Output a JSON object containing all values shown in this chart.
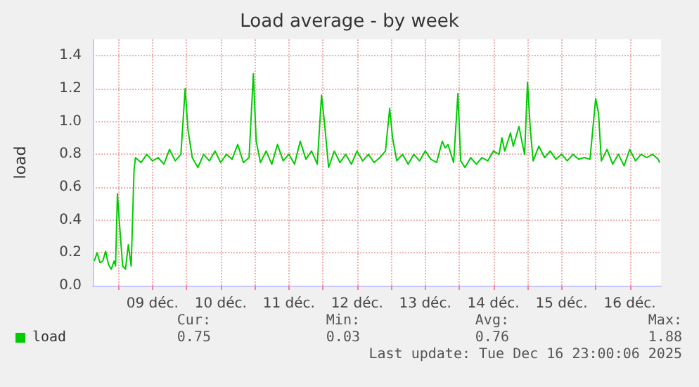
{
  "chart_data": {
    "type": "line",
    "title": "Load average - by week",
    "ylabel": "load",
    "x": [
      "2025-12-08T15:30",
      "2025-12-08T16:30",
      "2025-12-08T17:30",
      "2025-12-08T18:30",
      "2025-12-08T19:30",
      "2025-12-08T20:30",
      "2025-12-08T21:30",
      "2025-12-08T22:30",
      "2025-12-08T23:00",
      "2025-12-08T23:40",
      "2025-12-09T00:30",
      "2025-12-09T01:30",
      "2025-12-09T02:30",
      "2025-12-09T03:30",
      "2025-12-09T04:30",
      "2025-12-09T05:30",
      "2025-12-09T06:00",
      "2025-12-09T08:00",
      "2025-12-09T10:00",
      "2025-12-09T12:00",
      "2025-12-09T14:00",
      "2025-12-09T16:00",
      "2025-12-09T18:00",
      "2025-12-09T20:00",
      "2025-12-09T22:00",
      "2025-12-09T23:30",
      "2025-12-10T00:30",
      "2025-12-10T02:00",
      "2025-12-10T04:00",
      "2025-12-10T06:00",
      "2025-12-10T08:00",
      "2025-12-10T10:00",
      "2025-12-10T12:00",
      "2025-12-10T14:00",
      "2025-12-10T16:00",
      "2025-12-10T18:00",
      "2025-12-10T20:00",
      "2025-12-10T22:00",
      "2025-12-10T23:30",
      "2025-12-11T00:30",
      "2025-12-11T02:00",
      "2025-12-11T04:00",
      "2025-12-11T06:00",
      "2025-12-11T08:00",
      "2025-12-11T10:00",
      "2025-12-11T12:00",
      "2025-12-11T14:00",
      "2025-12-11T16:00",
      "2025-12-11T18:00",
      "2025-12-11T20:00",
      "2025-12-11T22:00",
      "2025-12-11T23:30",
      "2025-12-12T00:30",
      "2025-12-12T02:00",
      "2025-12-12T04:00",
      "2025-12-12T06:00",
      "2025-12-12T08:00",
      "2025-12-12T10:00",
      "2025-12-12T12:00",
      "2025-12-12T14:00",
      "2025-12-12T16:00",
      "2025-12-12T18:00",
      "2025-12-12T20:00",
      "2025-12-12T22:00",
      "2025-12-12T23:30",
      "2025-12-13T00:30",
      "2025-12-13T02:00",
      "2025-12-13T04:00",
      "2025-12-13T06:00",
      "2025-12-13T08:00",
      "2025-12-13T10:00",
      "2025-12-13T12:00",
      "2025-12-13T14:00",
      "2025-12-13T16:00",
      "2025-12-13T18:00",
      "2025-12-13T19:00",
      "2025-12-13T20:00",
      "2025-12-13T22:00",
      "2025-12-13T23:30",
      "2025-12-14T00:30",
      "2025-12-14T02:00",
      "2025-12-14T04:00",
      "2025-12-14T06:00",
      "2025-12-14T08:00",
      "2025-12-14T10:00",
      "2025-12-14T12:00",
      "2025-12-14T14:00",
      "2025-12-14T15:00",
      "2025-12-14T16:00",
      "2025-12-14T18:00",
      "2025-12-14T19:00",
      "2025-12-14T21:00",
      "2025-12-14T22:00",
      "2025-12-14T23:00",
      "2025-12-15T00:00",
      "2025-12-15T01:00",
      "2025-12-15T02:00",
      "2025-12-15T04:00",
      "2025-12-15T06:00",
      "2025-12-15T08:00",
      "2025-12-15T10:00",
      "2025-12-15T12:00",
      "2025-12-15T14:00",
      "2025-12-15T16:00",
      "2025-12-15T18:00",
      "2025-12-15T20:00",
      "2025-12-15T22:00",
      "2025-12-16T00:00",
      "2025-12-16T01:00",
      "2025-12-16T02:00",
      "2025-12-16T04:00",
      "2025-12-16T06:00",
      "2025-12-16T08:00",
      "2025-12-16T10:00",
      "2025-12-16T12:00",
      "2025-12-16T14:00",
      "2025-12-16T16:00",
      "2025-12-16T18:00",
      "2025-12-16T20:00",
      "2025-12-16T22:00",
      "2025-12-16T22:30"
    ],
    "series": [
      {
        "name": "load",
        "color": "#00cc00",
        "values": [
          0.15,
          0.2,
          0.14,
          0.15,
          0.21,
          0.13,
          0.1,
          0.15,
          0.12,
          0.56,
          0.35,
          0.12,
          0.1,
          0.25,
          0.12,
          0.7,
          0.78,
          0.75,
          0.8,
          0.76,
          0.78,
          0.74,
          0.83,
          0.76,
          0.8,
          1.2,
          0.95,
          0.78,
          0.72,
          0.8,
          0.76,
          0.82,
          0.75,
          0.8,
          0.77,
          0.86,
          0.75,
          0.78,
          1.29,
          0.88,
          0.75,
          0.82,
          0.74,
          0.86,
          0.76,
          0.8,
          0.74,
          0.88,
          0.77,
          0.82,
          0.74,
          1.16,
          1.0,
          0.72,
          0.82,
          0.75,
          0.8,
          0.74,
          0.82,
          0.76,
          0.8,
          0.75,
          0.78,
          0.82,
          1.08,
          0.9,
          0.76,
          0.8,
          0.74,
          0.8,
          0.76,
          0.82,
          0.77,
          0.75,
          0.88,
          0.84,
          0.86,
          0.75,
          1.17,
          0.76,
          0.72,
          0.78,
          0.74,
          0.78,
          0.76,
          0.82,
          0.8,
          0.9,
          0.82,
          0.93,
          0.85,
          0.97,
          0.88,
          0.8,
          1.24,
          0.95,
          0.76,
          0.85,
          0.78,
          0.82,
          0.77,
          0.8,
          0.76,
          0.8,
          0.77,
          0.78,
          0.77,
          1.14,
          1.05,
          0.76,
          0.83,
          0.74,
          0.8,
          0.73,
          0.83,
          0.76,
          0.8,
          0.78,
          0.8,
          0.77,
          0.75
        ]
      }
    ],
    "xlim": [
      "2025-12-08T15:00",
      "2025-12-16T23:00"
    ],
    "xticks": [
      {
        "value": "2025-12-09T00:00",
        "label": null
      },
      {
        "value": "2025-12-09T12:00",
        "label": "09 déc."
      },
      {
        "value": "2025-12-10T00:00",
        "label": null
      },
      {
        "value": "2025-12-10T12:00",
        "label": "10 déc."
      },
      {
        "value": "2025-12-11T00:00",
        "label": null
      },
      {
        "value": "2025-12-11T12:00",
        "label": "11 déc."
      },
      {
        "value": "2025-12-12T00:00",
        "label": null
      },
      {
        "value": "2025-12-12T12:00",
        "label": "12 déc."
      },
      {
        "value": "2025-12-13T00:00",
        "label": null
      },
      {
        "value": "2025-12-13T12:00",
        "label": "13 déc."
      },
      {
        "value": "2025-12-14T00:00",
        "label": null
      },
      {
        "value": "2025-12-14T12:00",
        "label": "14 déc."
      },
      {
        "value": "2025-12-15T00:00",
        "label": null
      },
      {
        "value": "2025-12-15T12:00",
        "label": "15 déc."
      },
      {
        "value": "2025-12-16T00:00",
        "label": null
      },
      {
        "value": "2025-12-16T12:00",
        "label": "16 déc."
      }
    ],
    "ylim": [
      0,
      1.5
    ],
    "yticks": [
      {
        "value": 0,
        "label": "0.0"
      },
      {
        "value": 0.2,
        "label": "0.2"
      },
      {
        "value": 0.4,
        "label": "0.4"
      },
      {
        "value": 0.6,
        "label": "0.6"
      },
      {
        "value": 0.8,
        "label": "0.8"
      },
      {
        "value": 1.0,
        "label": "1.0"
      },
      {
        "value": 1.2,
        "label": "1.2"
      },
      {
        "value": 1.4,
        "label": "1.4"
      }
    ],
    "grid": true,
    "legend": "bottom left",
    "marker": "none",
    "line_style": "solid",
    "annotations": [
      "Cur:",
      "0.75",
      "Min:",
      "0.03",
      "Avg:",
      "0.76",
      "Max:",
      "1.88",
      "Last update: Tue Dec 16 23:00:06 2025"
    ]
  }
}
